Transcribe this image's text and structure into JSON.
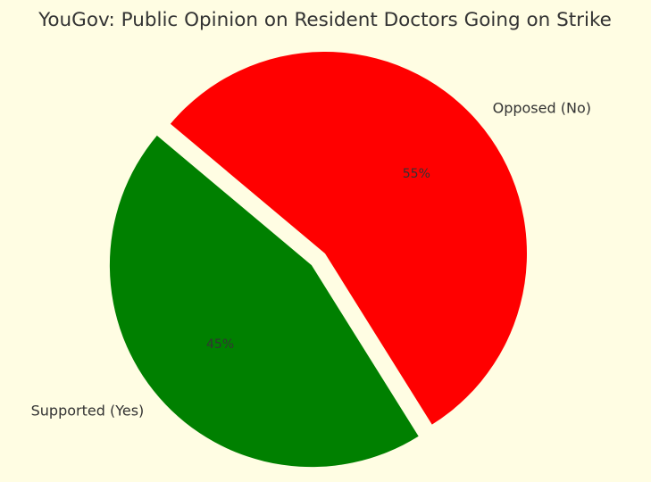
{
  "chart_data": {
    "type": "pie",
    "title": "YouGov: Public Opinion on Resident Doctors Going on Strike",
    "categories": [
      "Supported (Yes)",
      "Opposed (No)"
    ],
    "values": [
      45,
      55
    ],
    "percent_labels": [
      "45%",
      "55%"
    ],
    "colors": [
      "#008000",
      "#ff0000"
    ],
    "exploded": [
      "Supported (Yes)"
    ],
    "legend": "none"
  }
}
